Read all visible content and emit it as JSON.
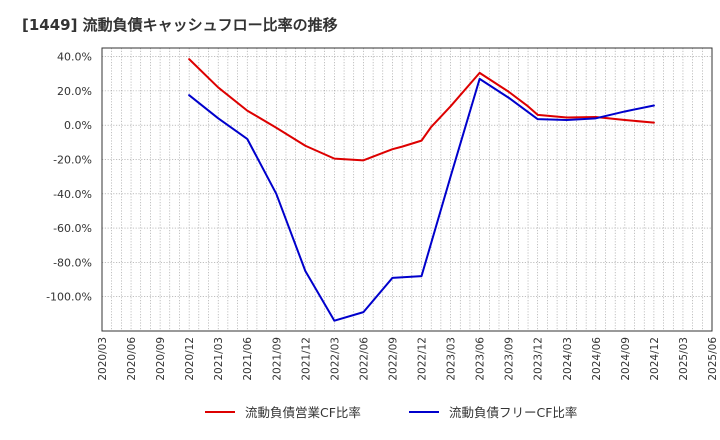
{
  "title": "[1449]  流動負債キャッシュフロー比率の推移",
  "chart_data": {
    "type": "line",
    "title": "[1449]  流動負債キャッシュフロー比率の推移",
    "xlabel": "",
    "ylabel": "",
    "ylim": [
      -120,
      45
    ],
    "y_ticks": [
      40,
      20,
      0,
      -20,
      -40,
      -60,
      -80,
      -100
    ],
    "y_tick_labels": [
      "40.0%",
      "20.0%",
      "0.0%",
      "-20.0%",
      "-40.0%",
      "-60.0%",
      "-80.0%",
      "-100.0%"
    ],
    "x_tick_labels": [
      "2020/03",
      "2020/06",
      "2020/09",
      "2020/12",
      "2021/03",
      "2021/06",
      "2021/09",
      "2021/12",
      "2022/03",
      "2022/06",
      "2022/09",
      "2022/12",
      "2023/03",
      "2023/06",
      "2023/09",
      "2023/12",
      "2024/03",
      "2024/06",
      "2024/09",
      "2024/12",
      "2025/03",
      "2025/06"
    ],
    "grid": true,
    "legend_position": "bottom",
    "series": [
      {
        "name": "流動負債営業CF比率",
        "color": "#dd0000",
        "x": [
          "2020/12",
          "2021/03",
          "2021/06",
          "2021/09",
          "2021/12",
          "2022/03",
          "2022/06",
          "2022/09",
          "2022/10",
          "2022/12",
          "2023/01",
          "2023/03",
          "2023/06",
          "2023/09",
          "2023/11",
          "2023/12",
          "2024/03",
          "2024/06",
          "2024/09",
          "2024/12"
        ],
        "values": [
          38.5,
          22.0,
          8.5,
          -1.5,
          -12.0,
          -19.5,
          -20.5,
          -14.0,
          -12.5,
          -9.0,
          -1.0,
          11.0,
          30.5,
          19.5,
          11.0,
          6.0,
          4.5,
          4.8,
          3.0,
          1.5
        ]
      },
      {
        "name": "流動負債フリーCF比率",
        "color": "#0000cc",
        "x": [
          "2020/12",
          "2021/03",
          "2021/06",
          "2021/09",
          "2021/12",
          "2022/03",
          "2022/06",
          "2022/09",
          "2022/12",
          "2023/03",
          "2023/06",
          "2023/09",
          "2023/12",
          "2024/03",
          "2024/06",
          "2024/09",
          "2024/12"
        ],
        "values": [
          17.5,
          4.0,
          -8.0,
          -40.0,
          -85.0,
          -114.0,
          -109.0,
          -89.0,
          -88.0,
          -30.0,
          27.0,
          16.0,
          3.5,
          3.0,
          4.0,
          8.0,
          11.5
        ]
      }
    ]
  }
}
